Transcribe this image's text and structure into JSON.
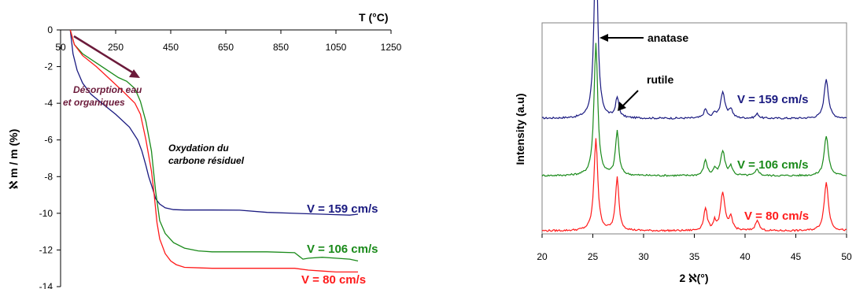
{
  "colors": {
    "blue": "#1a1a80",
    "green": "#1a8a1a",
    "red": "#ff1a1a",
    "purple": "#6b1a3a"
  },
  "chart_data": [
    {
      "type": "line",
      "title": "",
      "xlabel": "T (°C)",
      "ylabel": "ℵ m / m (%)",
      "xlim": [
        50,
        1250
      ],
      "ylim": [
        -14,
        0
      ],
      "x_ticks": [
        "50",
        "250",
        "450",
        "650",
        "850",
        "1050",
        "1250"
      ],
      "y_ticks": [
        "0",
        "-2",
        "-4",
        "-6",
        "-8",
        "-10",
        "-12",
        "-14"
      ],
      "annotations": {
        "desorption": [
          "Désorption eau",
          "et organiques"
        ],
        "oxydation": [
          "Oxydation du",
          "carbone résiduel"
        ]
      },
      "series": [
        {
          "name": "V = 159 cm/s",
          "color": "#1a1a80",
          "x": [
            85,
            95,
            110,
            130,
            160,
            200,
            250,
            300,
            330,
            345,
            360,
            370,
            385,
            395,
            410,
            430,
            460,
            500,
            600,
            700,
            800,
            900,
            1000,
            1100,
            1130
          ],
          "y": [
            0,
            -1.3,
            -2.2,
            -2.9,
            -3.5,
            -4.0,
            -4.6,
            -5.3,
            -6.0,
            -6.6,
            -7.4,
            -8.0,
            -8.7,
            -9.2,
            -9.5,
            -9.7,
            -9.8,
            -9.82,
            -9.82,
            -9.83,
            -9.95,
            -10.0,
            -10.05,
            -10.1,
            -10.05
          ]
        },
        {
          "name": "V = 106 cm/s",
          "color": "#1a8a1a",
          "x": [
            85,
            100,
            130,
            180,
            230,
            260,
            290,
            320,
            340,
            360,
            380,
            395,
            410,
            430,
            460,
            500,
            550,
            600,
            700,
            800,
            900,
            930,
            950,
            1000,
            1050,
            1100,
            1130
          ],
          "y": [
            0,
            -0.8,
            -1.3,
            -1.8,
            -2.3,
            -2.6,
            -2.8,
            -3.2,
            -3.9,
            -5.0,
            -6.6,
            -8.8,
            -10.4,
            -11.1,
            -11.6,
            -11.9,
            -12.05,
            -12.1,
            -12.1,
            -12.1,
            -12.15,
            -12.5,
            -12.45,
            -12.4,
            -12.45,
            -12.5,
            -12.6
          ]
        },
        {
          "name": "V = 80 cm/s",
          "color": "#ff1a1a",
          "x": [
            85,
            100,
            130,
            180,
            230,
            280,
            320,
            340,
            360,
            380,
            390,
            400,
            410,
            430,
            450,
            470,
            500,
            600,
            700,
            800,
            900,
            950,
            1000,
            1050,
            1100,
            1130
          ],
          "y": [
            0,
            -0.8,
            -1.4,
            -2.0,
            -2.7,
            -3.4,
            -4.0,
            -4.6,
            -6.0,
            -7.7,
            -9.0,
            -10.5,
            -11.4,
            -12.2,
            -12.6,
            -12.8,
            -12.95,
            -13.0,
            -13.0,
            -13.0,
            -13.0,
            -13.1,
            -13.15,
            -13.2,
            -13.2,
            -13.2
          ]
        }
      ]
    },
    {
      "type": "line",
      "title": "",
      "xlabel": "2 ℵ(°)",
      "ylabel": "Intensity (a.u)",
      "xlim": [
        20,
        50
      ],
      "x_ticks": [
        "20",
        "25",
        "30",
        "35",
        "40",
        "45",
        "50"
      ],
      "annotations": {
        "anatase": "anatase",
        "rutile": "rutile"
      },
      "peaks_2theta": [
        25.3,
        27.4,
        36.1,
        37.0,
        37.8,
        38.6,
        41.2,
        48.0
      ],
      "series": [
        {
          "name": "V = 159 cm/s",
          "color": "#1a1a80",
          "baseline": 2.6,
          "peak_heights": [
            4.0,
            0.45,
            0.2,
            0.12,
            0.6,
            0.2,
            0.1,
            0.9
          ]
        },
        {
          "name": "V = 106 cm/s",
          "color": "#1a8a1a",
          "baseline": 1.3,
          "peak_heights": [
            3.0,
            1.0,
            0.35,
            0.15,
            0.55,
            0.2,
            0.15,
            0.9
          ]
        },
        {
          "name": "V = 80 cm/s",
          "color": "#ff1a1a",
          "baseline": 0.05,
          "peak_heights": [
            2.1,
            1.2,
            0.5,
            0.2,
            0.85,
            0.3,
            0.25,
            1.1
          ]
        }
      ]
    }
  ]
}
